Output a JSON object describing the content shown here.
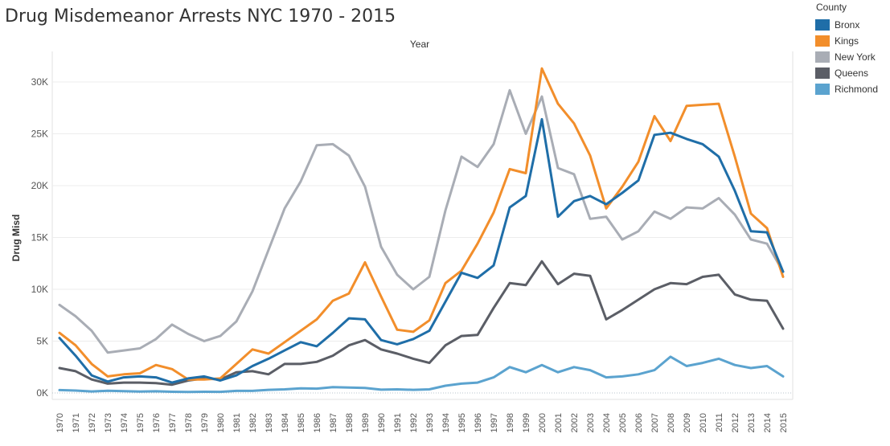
{
  "title": "Drug Misdemeanor Arrests NYC 1970 - 2015",
  "legend": {
    "title": "County",
    "items": [
      {
        "label": "Bronx",
        "color": "#1f6ea8"
      },
      {
        "label": "Kings",
        "color": "#f28e2b"
      },
      {
        "label": "New York",
        "color": "#a9adb5"
      },
      {
        "label": "Queens",
        "color": "#5b5e66"
      },
      {
        "label": "Richmond",
        "color": "#5ba3cf"
      }
    ]
  },
  "chart_data": {
    "type": "line",
    "title": "Drug Misdemeanor Arrests NYC 1970 - 2015",
    "column_header": "Year",
    "xlabel": "",
    "ylabel": "Drug Misd",
    "ylim": [
      0,
      32000
    ],
    "yticks": [
      0,
      5000,
      10000,
      15000,
      20000,
      25000,
      30000
    ],
    "ytick_labels": [
      "0K",
      "5K",
      "10K",
      "15K",
      "20K",
      "25K",
      "30K"
    ],
    "grid": true,
    "legend_position": "top-right",
    "x": [
      "1970",
      "1971",
      "1972",
      "1973",
      "1974",
      "1975",
      "1976",
      "1977",
      "1978",
      "1979",
      "1980",
      "1981",
      "1982",
      "1983",
      "1984",
      "1985",
      "1986",
      "1987",
      "1988",
      "1989",
      "1990",
      "1991",
      "1992",
      "1993",
      "1994",
      "1995",
      "1996",
      "1997",
      "1998",
      "1999",
      "2000",
      "2001",
      "2002",
      "2003",
      "2004",
      "2005",
      "2006",
      "2007",
      "2008",
      "2009",
      "2010",
      "2011",
      "2012",
      "2013",
      "2014",
      "2015"
    ],
    "series": [
      {
        "name": "New York",
        "color": "#a9adb5",
        "values": [
          8500,
          7400,
          6000,
          3900,
          4100,
          4300,
          5200,
          6600,
          5700,
          5000,
          5500,
          6900,
          9800,
          13800,
          17800,
          20400,
          23900,
          24000,
          22900,
          19900,
          14100,
          11400,
          10000,
          11200,
          17600,
          22800,
          21800,
          24000,
          29200,
          25000,
          28600,
          21700,
          21100,
          16800,
          17000,
          14800,
          15600,
          17500,
          16800,
          17900,
          17800,
          18800,
          17200,
          14800,
          14400,
          11700
        ]
      },
      {
        "name": "Queens",
        "color": "#5b5e66",
        "values": [
          2400,
          2100,
          1300,
          900,
          1000,
          1000,
          950,
          800,
          1200,
          1400,
          1300,
          2000,
          2100,
          1800,
          2800,
          2800,
          3000,
          3600,
          4600,
          5100,
          4200,
          3800,
          3300,
          2900,
          4600,
          5500,
          5600,
          8200,
          10600,
          10400,
          12700,
          10500,
          11500,
          11300,
          7100,
          8000,
          9000,
          10000,
          10600,
          10500,
          11200,
          11400,
          9500,
          9000,
          8900,
          6200
        ]
      },
      {
        "name": "Kings",
        "color": "#f28e2b",
        "values": [
          5800,
          4600,
          2800,
          1600,
          1800,
          1900,
          2700,
          2300,
          1300,
          1300,
          1400,
          2800,
          4200,
          3800,
          4900,
          6000,
          7100,
          8900,
          9600,
          12600,
          9300,
          6100,
          5900,
          7000,
          10600,
          11800,
          14400,
          17400,
          21600,
          21200,
          31300,
          27900,
          26000,
          22900,
          17800,
          19900,
          22300,
          26700,
          24300,
          27700,
          27800,
          27900,
          22800,
          17300,
          15900,
          11200
        ]
      },
      {
        "name": "Bronx",
        "color": "#1f6ea8",
        "values": [
          5300,
          3600,
          1700,
          1100,
          1500,
          1600,
          1500,
          1000,
          1400,
          1600,
          1200,
          1700,
          2600,
          3300,
          4100,
          4900,
          4500,
          5800,
          7200,
          7100,
          5100,
          4700,
          5200,
          6000,
          8800,
          11600,
          11100,
          12300,
          17900,
          19000,
          26400,
          17000,
          18500,
          19000,
          18200,
          19300,
          20500,
          24900,
          25100,
          24500,
          24000,
          22800,
          19500,
          15600,
          15500,
          11700
        ]
      },
      {
        "name": "Richmond",
        "color": "#5ba3cf",
        "values": [
          280,
          230,
          150,
          210,
          180,
          130,
          160,
          120,
          90,
          120,
          110,
          200,
          200,
          300,
          350,
          450,
          420,
          560,
          530,
          490,
          320,
          350,
          300,
          350,
          700,
          900,
          1000,
          1500,
          2500,
          2000,
          2700,
          2000,
          2500,
          2200,
          1500,
          1600,
          1800,
          2200,
          3500,
          2600,
          2900,
          3300,
          2700,
          2400,
          2600,
          1600
        ]
      }
    ]
  }
}
